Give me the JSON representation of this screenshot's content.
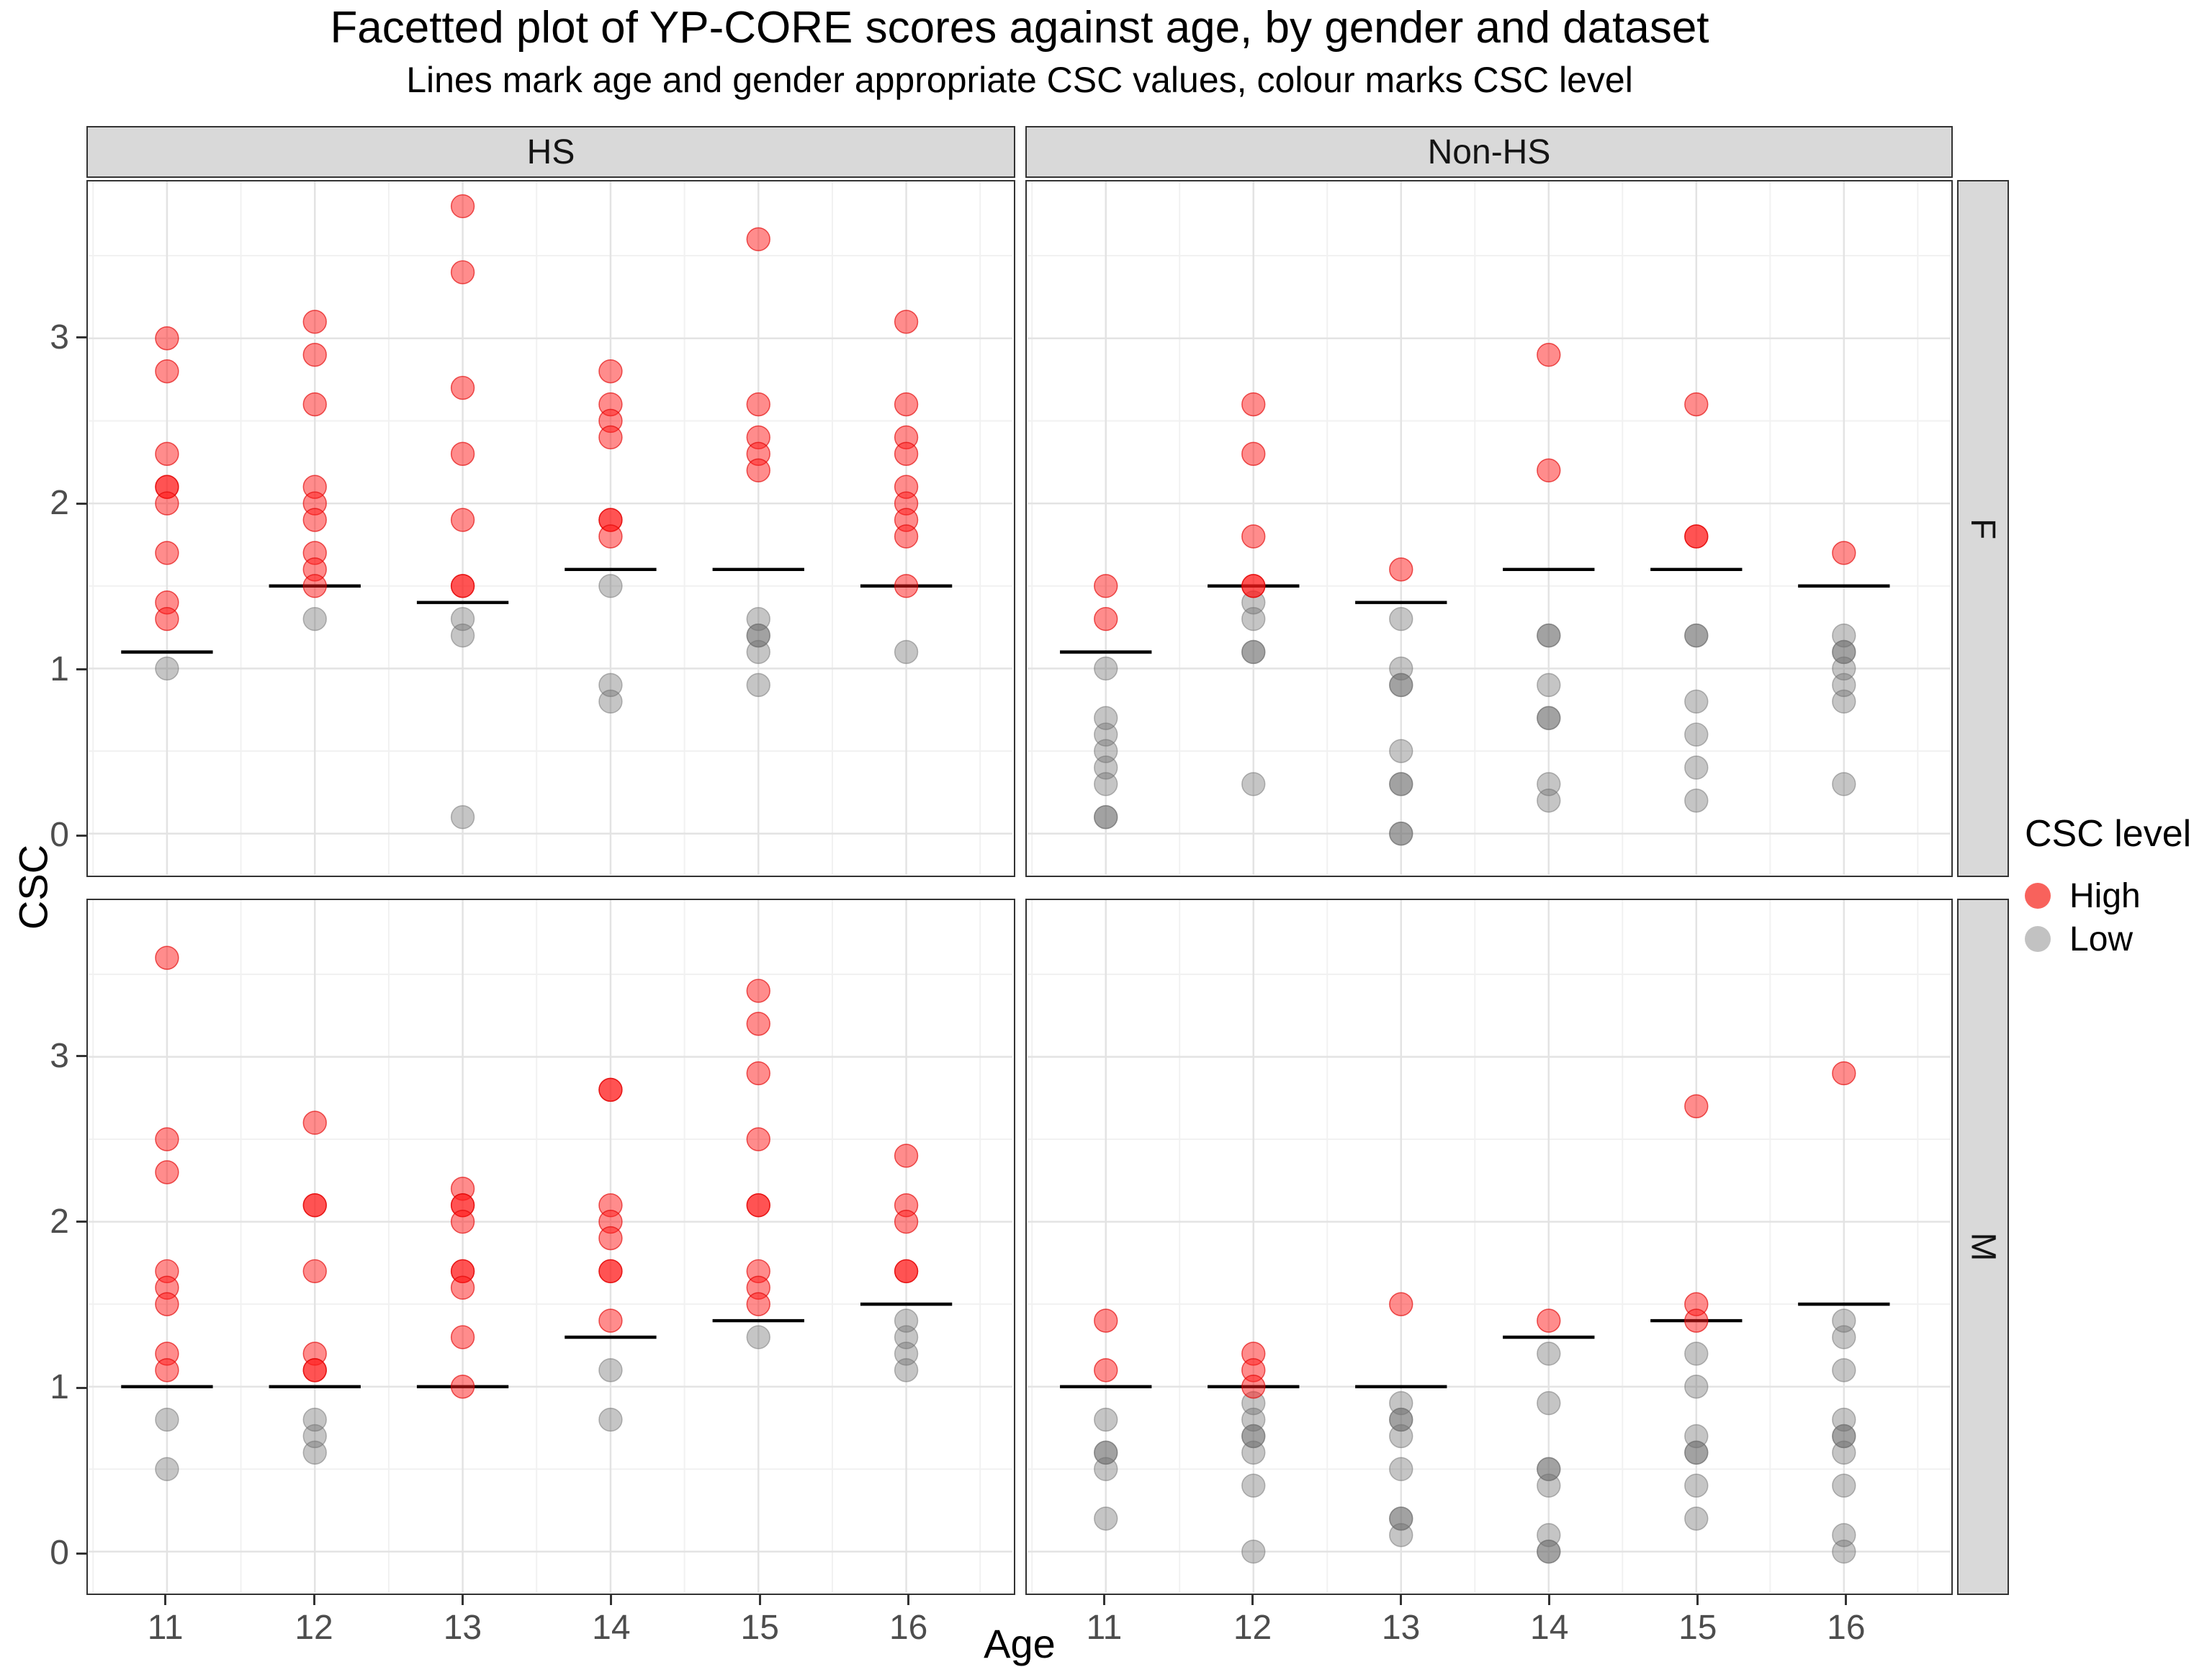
{
  "header": {
    "title": "Facetted plot of YP-CORE scores against age, by gender and dataset",
    "subtitle": "Lines mark age and gender appropriate CSC values, colour marks CSC level"
  },
  "axis": {
    "x_label": "Age",
    "y_label": "CSC"
  },
  "legend": {
    "title": "CSC level",
    "items": [
      {
        "label": "High",
        "color": "#F8625C"
      },
      {
        "label": "Low",
        "color": "#C2C2C2"
      }
    ]
  },
  "colors": {
    "high_fill": "rgba(255,25,25,0.50)",
    "high_stroke": "rgba(225,0,0,0.65)",
    "low_fill": "rgba(110,110,110,0.40)",
    "low_stroke": "rgba(110,110,110,0.50)",
    "csc_line": "#000000",
    "grid_major": "#E3E3E3",
    "grid_minor": "#F1F1F1",
    "tick_mark": "#333333",
    "tick_label": "#4D4D4D",
    "strip_bg": "#D9D9D9"
  },
  "chart_data": {
    "type": "scatter",
    "title": "Facetted plot of YP-CORE scores against age, by gender and dataset",
    "subtitle": "Lines mark age and gender appropriate CSC values, colour marks CSC level",
    "xlabel": "Age",
    "ylabel": "CSC",
    "x_ticks": [
      11,
      12,
      13,
      14,
      15,
      16
    ],
    "y_ticks": [
      0,
      1,
      2,
      3
    ],
    "ylim": [
      -0.25,
      3.95
    ],
    "grid": true,
    "legend_position": "right",
    "facet_columns": [
      "HS",
      "Non-HS"
    ],
    "facet_rows": [
      "F",
      "M"
    ],
    "facets": [
      {
        "dataset": "HS",
        "gender": "F",
        "csc_lines": [
          [
            11,
            1.1
          ],
          [
            12,
            1.5
          ],
          [
            13,
            1.4
          ],
          [
            14,
            1.6
          ],
          [
            15,
            1.6
          ],
          [
            16,
            1.5
          ]
        ],
        "points_high": [
          [
            11,
            3.0
          ],
          [
            11,
            2.8
          ],
          [
            11,
            2.3
          ],
          [
            11,
            2.1
          ],
          [
            11,
            2.1
          ],
          [
            11,
            2.0
          ],
          [
            11,
            1.7
          ],
          [
            11,
            1.4
          ],
          [
            11,
            1.3
          ],
          [
            12,
            3.1
          ],
          [
            12,
            2.9
          ],
          [
            12,
            2.6
          ],
          [
            12,
            2.1
          ],
          [
            12,
            2.0
          ],
          [
            12,
            1.9
          ],
          [
            12,
            1.7
          ],
          [
            12,
            1.6
          ],
          [
            12,
            1.5
          ],
          [
            13,
            3.8
          ],
          [
            13,
            3.4
          ],
          [
            13,
            2.7
          ],
          [
            13,
            2.3
          ],
          [
            13,
            1.9
          ],
          [
            13,
            1.5
          ],
          [
            13,
            1.5
          ],
          [
            14,
            2.8
          ],
          [
            14,
            2.6
          ],
          [
            14,
            2.5
          ],
          [
            14,
            2.4
          ],
          [
            14,
            1.9
          ],
          [
            14,
            1.9
          ],
          [
            14,
            1.8
          ],
          [
            15,
            3.6
          ],
          [
            15,
            2.6
          ],
          [
            15,
            2.4
          ],
          [
            15,
            2.3
          ],
          [
            15,
            2.2
          ],
          [
            16,
            3.1
          ],
          [
            16,
            2.6
          ],
          [
            16,
            2.4
          ],
          [
            16,
            2.3
          ],
          [
            16,
            2.1
          ],
          [
            16,
            2.0
          ],
          [
            16,
            1.9
          ],
          [
            16,
            1.8
          ],
          [
            16,
            1.5
          ]
        ],
        "points_low": [
          [
            11,
            1.0
          ],
          [
            12,
            1.3
          ],
          [
            13,
            1.3
          ],
          [
            13,
            1.2
          ],
          [
            13,
            0.1
          ],
          [
            14,
            1.5
          ],
          [
            14,
            0.9
          ],
          [
            14,
            0.8
          ],
          [
            15,
            1.3
          ],
          [
            15,
            1.2
          ],
          [
            15,
            1.2
          ],
          [
            15,
            1.1
          ],
          [
            15,
            0.9
          ],
          [
            16,
            1.1
          ]
        ]
      },
      {
        "dataset": "Non-HS",
        "gender": "F",
        "csc_lines": [
          [
            11,
            1.1
          ],
          [
            12,
            1.5
          ],
          [
            13,
            1.4
          ],
          [
            14,
            1.6
          ],
          [
            15,
            1.6
          ],
          [
            16,
            1.5
          ]
        ],
        "points_high": [
          [
            11,
            1.5
          ],
          [
            11,
            1.3
          ],
          [
            12,
            2.6
          ],
          [
            12,
            2.3
          ],
          [
            12,
            1.8
          ],
          [
            12,
            1.5
          ],
          [
            12,
            1.5
          ],
          [
            13,
            1.6
          ],
          [
            14,
            2.9
          ],
          [
            14,
            2.2
          ],
          [
            15,
            2.6
          ],
          [
            15,
            1.8
          ],
          [
            15,
            1.8
          ],
          [
            16,
            1.7
          ]
        ],
        "points_low": [
          [
            11,
            1.0
          ],
          [
            11,
            0.7
          ],
          [
            11,
            0.6
          ],
          [
            11,
            0.5
          ],
          [
            11,
            0.4
          ],
          [
            11,
            0.3
          ],
          [
            11,
            0.1
          ],
          [
            11,
            0.1
          ],
          [
            12,
            1.4
          ],
          [
            12,
            1.3
          ],
          [
            12,
            1.1
          ],
          [
            12,
            1.1
          ],
          [
            12,
            0.3
          ],
          [
            13,
            1.3
          ],
          [
            13,
            1.0
          ],
          [
            13,
            0.9
          ],
          [
            13,
            0.9
          ],
          [
            13,
            0.5
          ],
          [
            13,
            0.3
          ],
          [
            13,
            0.3
          ],
          [
            13,
            0.0
          ],
          [
            13,
            0.0
          ],
          [
            14,
            1.2
          ],
          [
            14,
            1.2
          ],
          [
            14,
            0.9
          ],
          [
            14,
            0.7
          ],
          [
            14,
            0.7
          ],
          [
            14,
            0.3
          ],
          [
            14,
            0.2
          ],
          [
            15,
            1.2
          ],
          [
            15,
            1.2
          ],
          [
            15,
            0.8
          ],
          [
            15,
            0.6
          ],
          [
            15,
            0.4
          ],
          [
            15,
            0.2
          ],
          [
            16,
            1.2
          ],
          [
            16,
            1.1
          ],
          [
            16,
            1.1
          ],
          [
            16,
            1.0
          ],
          [
            16,
            0.9
          ],
          [
            16,
            0.8
          ],
          [
            16,
            0.3
          ]
        ]
      },
      {
        "dataset": "HS",
        "gender": "M",
        "csc_lines": [
          [
            11,
            1.0
          ],
          [
            12,
            1.0
          ],
          [
            13,
            1.0
          ],
          [
            14,
            1.3
          ],
          [
            15,
            1.4
          ],
          [
            16,
            1.5
          ]
        ],
        "points_high": [
          [
            11,
            3.6
          ],
          [
            11,
            2.5
          ],
          [
            11,
            2.3
          ],
          [
            11,
            1.7
          ],
          [
            11,
            1.6
          ],
          [
            11,
            1.5
          ],
          [
            11,
            1.2
          ],
          [
            11,
            1.1
          ],
          [
            12,
            2.6
          ],
          [
            12,
            2.1
          ],
          [
            12,
            2.1
          ],
          [
            12,
            1.7
          ],
          [
            12,
            1.2
          ],
          [
            12,
            1.1
          ],
          [
            12,
            1.1
          ],
          [
            13,
            2.2
          ],
          [
            13,
            2.1
          ],
          [
            13,
            2.1
          ],
          [
            13,
            2.0
          ],
          [
            13,
            1.7
          ],
          [
            13,
            1.7
          ],
          [
            13,
            1.6
          ],
          [
            13,
            1.3
          ],
          [
            13,
            1.0
          ],
          [
            14,
            2.8
          ],
          [
            14,
            2.8
          ],
          [
            14,
            2.1
          ],
          [
            14,
            2.0
          ],
          [
            14,
            1.9
          ],
          [
            14,
            1.7
          ],
          [
            14,
            1.7
          ],
          [
            14,
            1.4
          ],
          [
            15,
            3.4
          ],
          [
            15,
            3.2
          ],
          [
            15,
            2.9
          ],
          [
            15,
            2.5
          ],
          [
            15,
            2.1
          ],
          [
            15,
            2.1
          ],
          [
            15,
            1.7
          ],
          [
            15,
            1.6
          ],
          [
            15,
            1.5
          ],
          [
            16,
            2.4
          ],
          [
            16,
            2.1
          ],
          [
            16,
            2.0
          ],
          [
            16,
            1.7
          ],
          [
            16,
            1.7
          ]
        ],
        "points_low": [
          [
            11,
            0.8
          ],
          [
            11,
            0.5
          ],
          [
            12,
            0.8
          ],
          [
            12,
            0.7
          ],
          [
            12,
            0.6
          ],
          [
            14,
            1.1
          ],
          [
            14,
            0.8
          ],
          [
            15,
            1.3
          ],
          [
            16,
            1.4
          ],
          [
            16,
            1.3
          ],
          [
            16,
            1.2
          ],
          [
            16,
            1.1
          ]
        ]
      },
      {
        "dataset": "Non-HS",
        "gender": "M",
        "csc_lines": [
          [
            11,
            1.0
          ],
          [
            12,
            1.0
          ],
          [
            13,
            1.0
          ],
          [
            14,
            1.3
          ],
          [
            15,
            1.4
          ],
          [
            16,
            1.5
          ]
        ],
        "points_high": [
          [
            11,
            1.4
          ],
          [
            11,
            1.1
          ],
          [
            12,
            1.2
          ],
          [
            12,
            1.1
          ],
          [
            12,
            1.0
          ],
          [
            13,
            1.5
          ],
          [
            14,
            1.4
          ],
          [
            15,
            2.7
          ],
          [
            15,
            1.5
          ],
          [
            15,
            1.4
          ],
          [
            16,
            2.9
          ]
        ],
        "points_low": [
          [
            11,
            0.8
          ],
          [
            11,
            0.6
          ],
          [
            11,
            0.6
          ],
          [
            11,
            0.5
          ],
          [
            11,
            0.2
          ],
          [
            12,
            0.9
          ],
          [
            12,
            0.8
          ],
          [
            12,
            0.7
          ],
          [
            12,
            0.7
          ],
          [
            12,
            0.6
          ],
          [
            12,
            0.4
          ],
          [
            12,
            0.0
          ],
          [
            13,
            0.9
          ],
          [
            13,
            0.8
          ],
          [
            13,
            0.8
          ],
          [
            13,
            0.7
          ],
          [
            13,
            0.5
          ],
          [
            13,
            0.2
          ],
          [
            13,
            0.2
          ],
          [
            13,
            0.1
          ],
          [
            14,
            1.2
          ],
          [
            14,
            0.9
          ],
          [
            14,
            0.5
          ],
          [
            14,
            0.5
          ],
          [
            14,
            0.4
          ],
          [
            14,
            0.1
          ],
          [
            14,
            0.0
          ],
          [
            14,
            0.0
          ],
          [
            15,
            1.2
          ],
          [
            15,
            1.0
          ],
          [
            15,
            0.7
          ],
          [
            15,
            0.6
          ],
          [
            15,
            0.6
          ],
          [
            15,
            0.4
          ],
          [
            15,
            0.2
          ],
          [
            16,
            1.4
          ],
          [
            16,
            1.3
          ],
          [
            16,
            1.1
          ],
          [
            16,
            0.8
          ],
          [
            16,
            0.7
          ],
          [
            16,
            0.7
          ],
          [
            16,
            0.6
          ],
          [
            16,
            0.4
          ],
          [
            16,
            0.1
          ],
          [
            16,
            0.0
          ]
        ]
      }
    ]
  }
}
